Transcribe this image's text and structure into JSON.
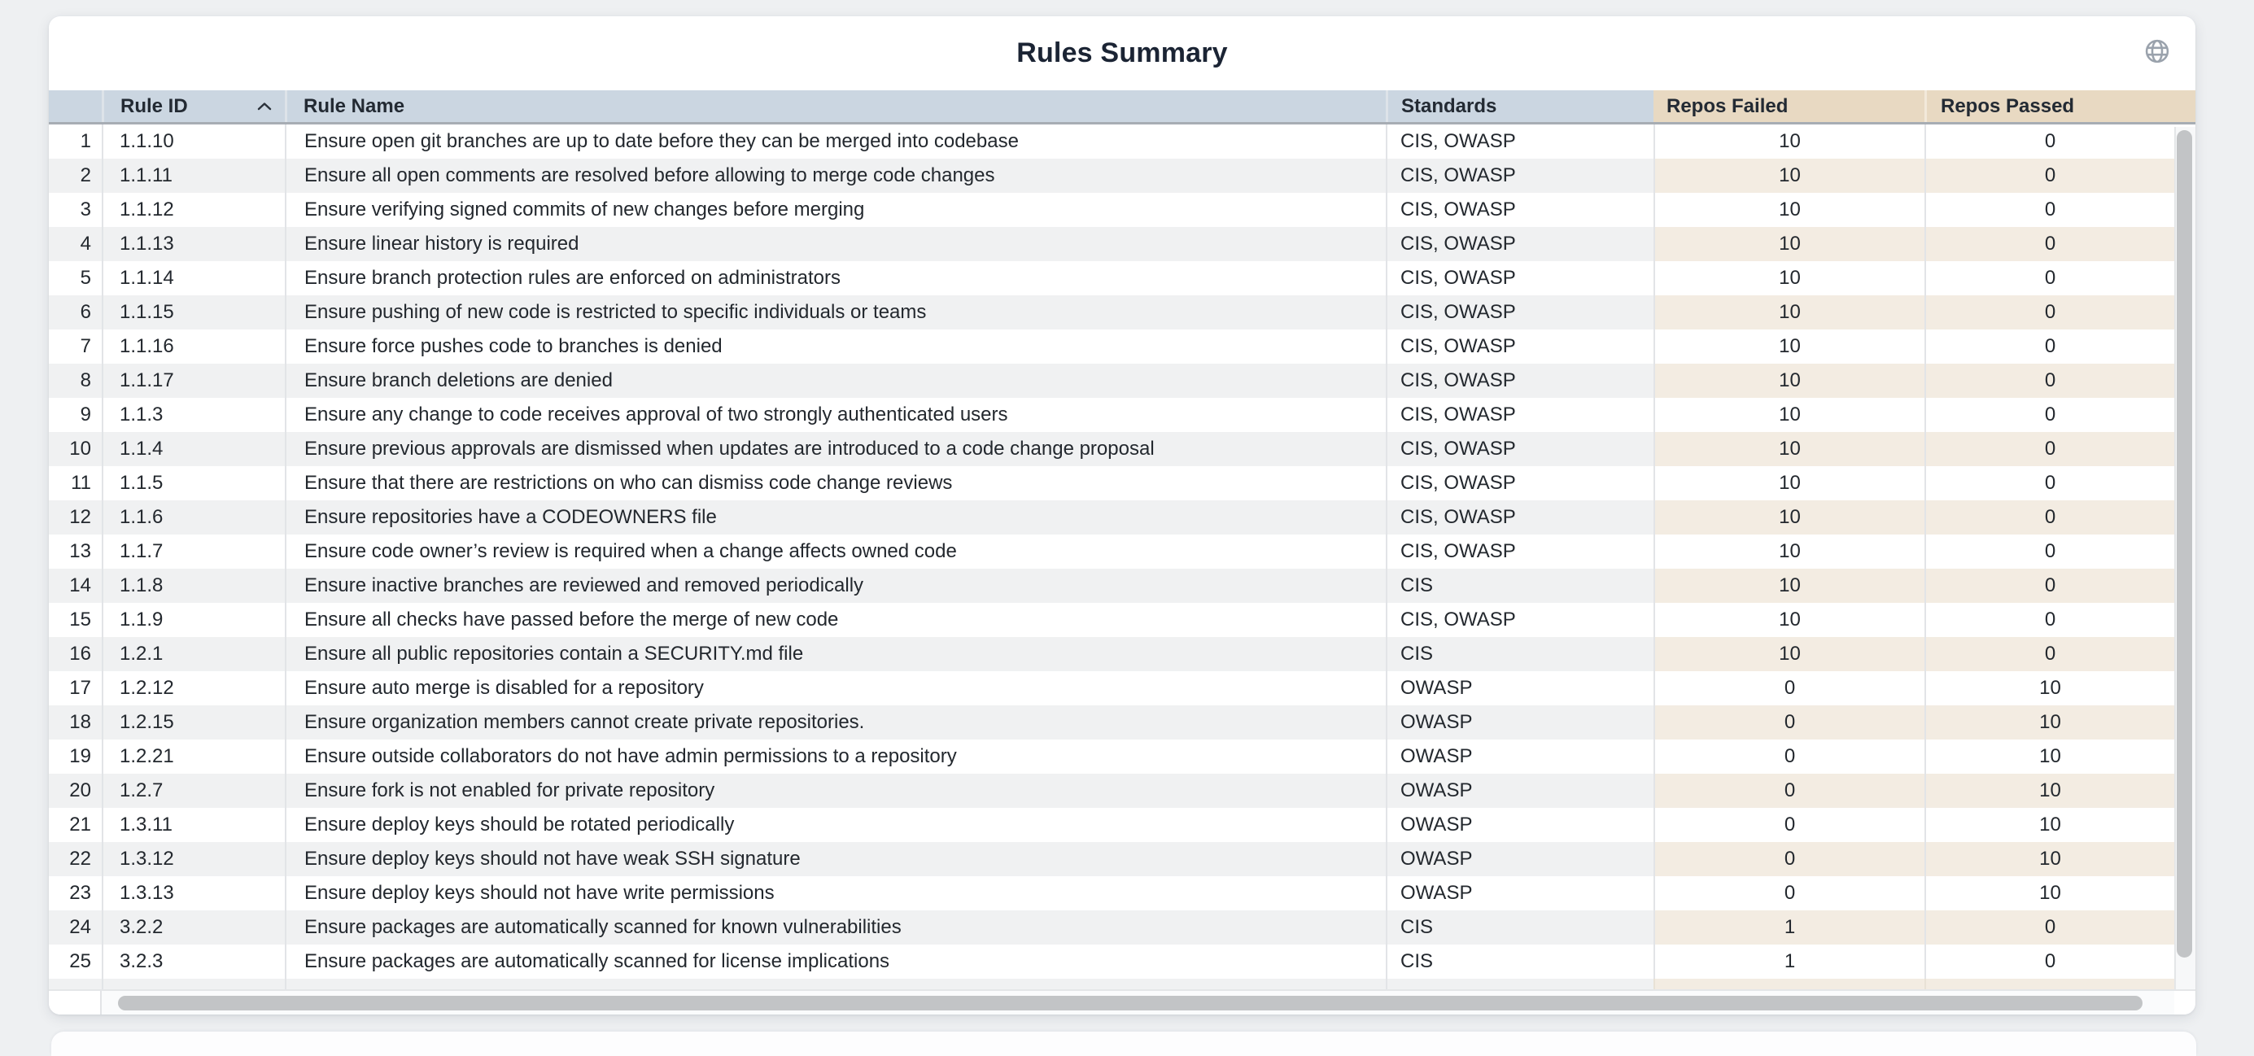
{
  "card": {
    "title": "Rules Summary"
  },
  "icons": {
    "header_action": "globe-icon",
    "rule_id_sort": "chevron-up-icon (sorted ascending)"
  },
  "table": {
    "columns": [
      {
        "label": "",
        "sortable": false
      },
      {
        "label": "Rule ID",
        "sortable": true,
        "sort": "ascending"
      },
      {
        "label": "Rule Name",
        "sortable": true
      },
      {
        "label": "Standards",
        "sortable": true
      },
      {
        "label": "Repos Failed",
        "sortable": true
      },
      {
        "label": "Repos Passed",
        "sortable": true
      }
    ],
    "rows": [
      [
        "1",
        "1.1.10",
        "Ensure open git branches are up to date before they can be merged into codebase",
        "CIS, OWASP",
        "10",
        "0"
      ],
      [
        "2",
        "1.1.11",
        "Ensure all open comments are resolved before allowing to merge code changes",
        "CIS, OWASP",
        "10",
        "0"
      ],
      [
        "3",
        "1.1.12",
        "Ensure verifying signed commits of new changes before merging",
        "CIS, OWASP",
        "10",
        "0"
      ],
      [
        "4",
        "1.1.13",
        "Ensure linear history is required",
        "CIS, OWASP",
        "10",
        "0"
      ],
      [
        "5",
        "1.1.14",
        "Ensure branch protection rules are enforced on administrators",
        "CIS, OWASP",
        "10",
        "0"
      ],
      [
        "6",
        "1.1.15",
        "Ensure pushing of new code is restricted to specific individuals or teams",
        "CIS, OWASP",
        "10",
        "0"
      ],
      [
        "7",
        "1.1.16",
        "Ensure force pushes code to branches is denied",
        "CIS, OWASP",
        "10",
        "0"
      ],
      [
        "8",
        "1.1.17",
        "Ensure branch deletions are denied",
        "CIS, OWASP",
        "10",
        "0"
      ],
      [
        "9",
        "1.1.3",
        "Ensure any change to code receives approval of two strongly authenticated users",
        "CIS, OWASP",
        "10",
        "0"
      ],
      [
        "10",
        "1.1.4",
        "Ensure previous approvals are dismissed when updates are introduced to a code change proposal",
        "CIS, OWASP",
        "10",
        "0"
      ],
      [
        "11",
        "1.1.5",
        "Ensure that there are restrictions on who can dismiss code change reviews",
        "CIS, OWASP",
        "10",
        "0"
      ],
      [
        "12",
        "1.1.6",
        "Ensure repositories have a CODEOWNERS file",
        "CIS, OWASP",
        "10",
        "0"
      ],
      [
        "13",
        "1.1.7",
        "Ensure code owner’s review is required when a change affects owned code",
        "CIS, OWASP",
        "10",
        "0"
      ],
      [
        "14",
        "1.1.8",
        "Ensure inactive branches are reviewed and removed periodically",
        "CIS",
        "10",
        "0"
      ],
      [
        "15",
        "1.1.9",
        "Ensure all checks have passed before the merge of new code",
        "CIS, OWASP",
        "10",
        "0"
      ],
      [
        "16",
        "1.2.1",
        "Ensure all public repositories contain a SECURITY.md file",
        "CIS",
        "10",
        "0"
      ],
      [
        "17",
        "1.2.12",
        "Ensure auto merge is disabled for a repository",
        "OWASP",
        "0",
        "10"
      ],
      [
        "18",
        "1.2.15",
        "Ensure organization members cannot create private repositories.",
        "OWASP",
        "0",
        "10"
      ],
      [
        "19",
        "1.2.21",
        "Ensure outside collaborators do not have admin permissions to a repository",
        "OWASP",
        "0",
        "10"
      ],
      [
        "20",
        "1.2.7",
        "Ensure fork is not enabled for private repository",
        "OWASP",
        "0",
        "10"
      ],
      [
        "21",
        "1.3.11",
        "Ensure deploy keys should be rotated periodically",
        "OWASP",
        "0",
        "10"
      ],
      [
        "22",
        "1.3.12",
        "Ensure deploy keys should not have weak SSH signature",
        "OWASP",
        "0",
        "10"
      ],
      [
        "23",
        "1.3.13",
        "Ensure deploy keys should not have write permissions",
        "OWASP",
        "0",
        "10"
      ],
      [
        "24",
        "3.2.2",
        "Ensure packages are automatically scanned for known vulnerabilities",
        "CIS",
        "1",
        "0"
      ],
      [
        "25",
        "3.2.3",
        "Ensure packages are automatically scanned for license implications",
        "CIS",
        "1",
        "0"
      ]
    ]
  },
  "colors": {
    "page_background": "#eef0f2",
    "header_blue": "#cbd6e1",
    "header_tan": "#e8d9c2",
    "stripe_gray": "#f0f1f2",
    "stripe_tan": "#f3ece2",
    "title_text": "#1b2434",
    "body_text": "#23282e",
    "scrollbar_thumb": "#c2c4c6"
  }
}
